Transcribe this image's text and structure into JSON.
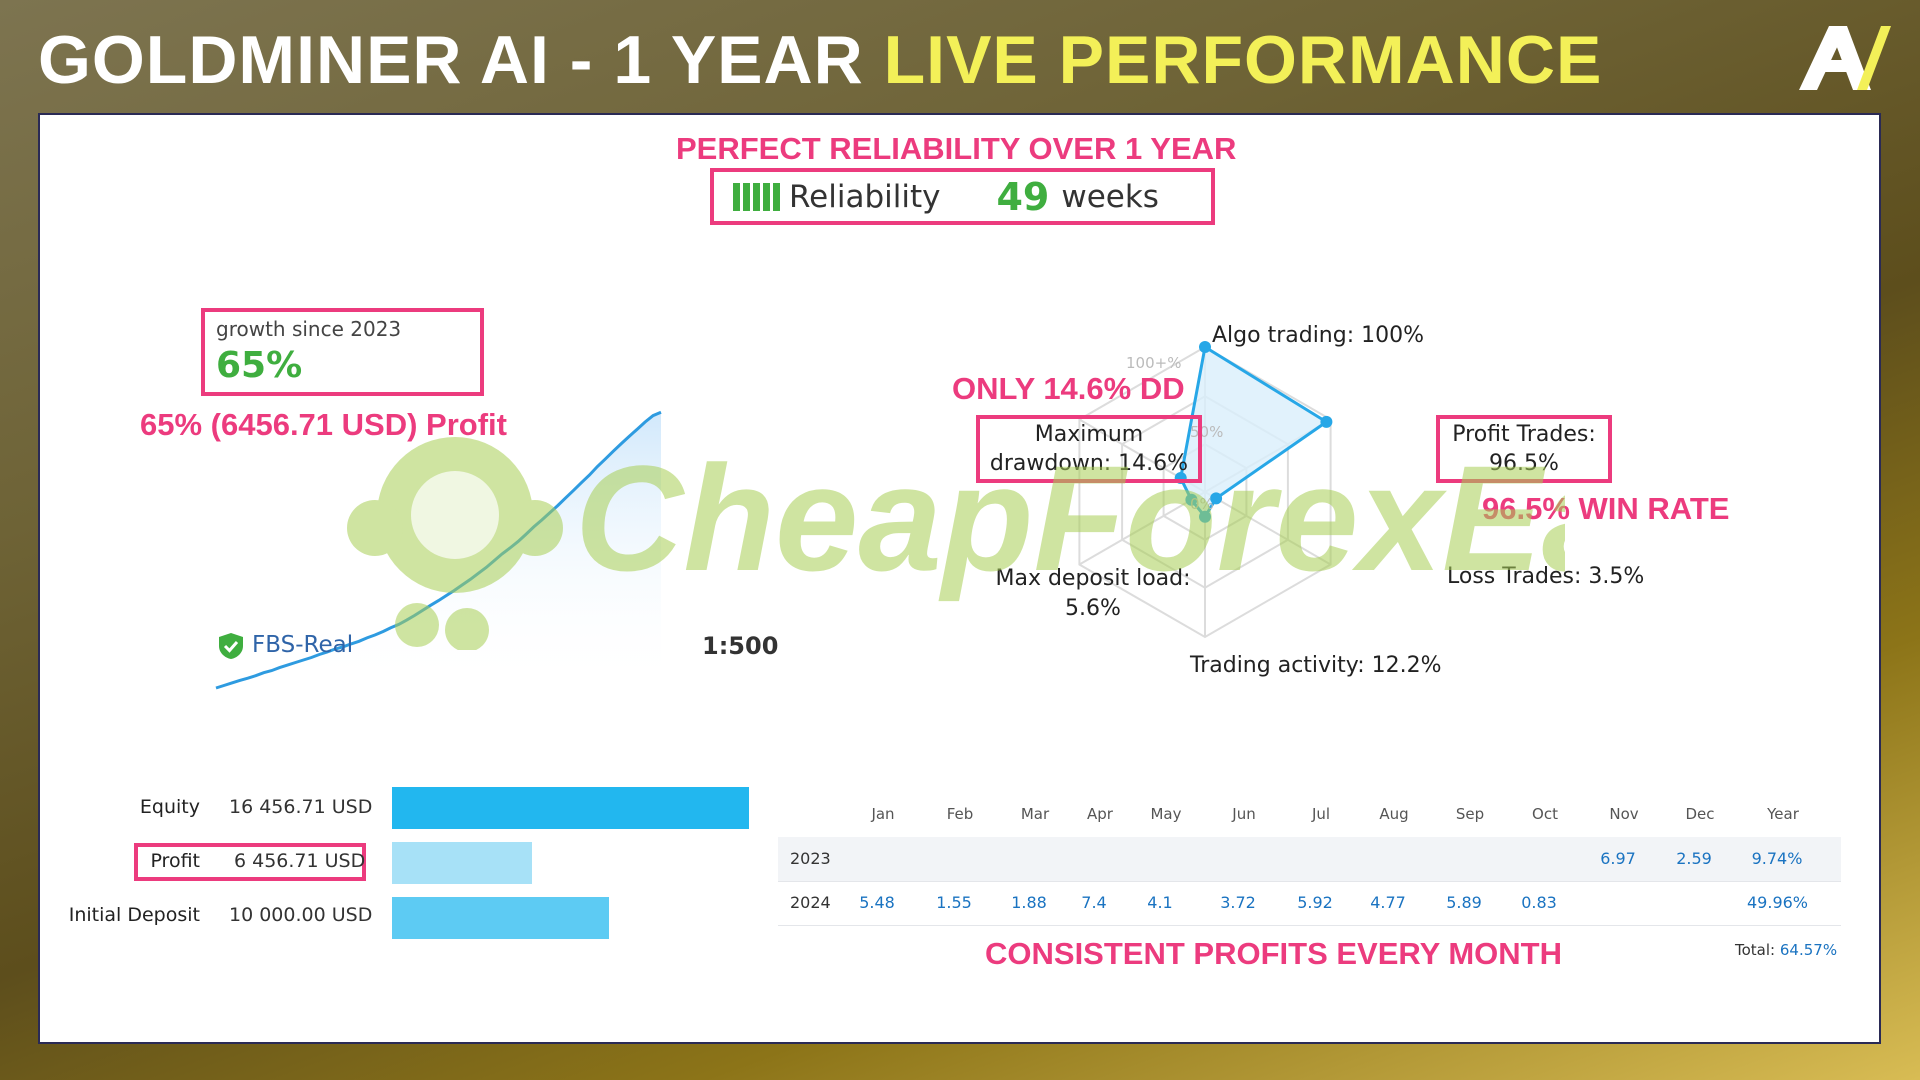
{
  "header": {
    "title_white": "GOLDMINER AI - 1 YEAR ",
    "title_yellow": "LIVE PERFORMANCE"
  },
  "annotations": {
    "reliability_caption": "PERFECT RELIABILITY OVER 1 YEAR",
    "profit_caption": "65% (6456.71 USD) Profit",
    "dd_caption": "ONLY 14.6% DD",
    "winrate_caption": "96.5% WIN RATE",
    "monthly_caption": "CONSISTENT PROFITS EVERY MONTH"
  },
  "reliability": {
    "label": "Reliability",
    "weeks_value": "49",
    "weeks_unit": "weeks",
    "bars": 5
  },
  "growth": {
    "label": "growth since 2023",
    "value": "65%"
  },
  "account": {
    "broker": "FBS-Real",
    "leverage": "1:500"
  },
  "watermark": "CheapForexEa",
  "radar": {
    "algo": "Algo trading: 100%",
    "profit_trades_1": "Profit Trades:",
    "profit_trades_2": "96.5%",
    "loss_trades": "Loss Trades: 3.5%",
    "trading_activity": "Trading activity: 12.2%",
    "max_deposit_1": "Max deposit load:",
    "max_deposit_2": "5.6%",
    "max_dd_1": "Maximum",
    "max_dd_2": "drawdown: 14.6%",
    "scale_100": "100+%",
    "scale_50": "50%",
    "scale_0": "0%",
    "values": [
      100,
      96.5,
      3.5,
      12.2,
      5.6,
      14.6
    ]
  },
  "stats": {
    "equity_label": "Equity",
    "equity_value": "16 456.71 USD",
    "profit_label": "Profit",
    "profit_value": "6 456.71 USD",
    "deposit_label": "Initial Deposit",
    "deposit_value": "10 000.00 USD",
    "equity_amount": 16456.71,
    "profit_amount": 6456.71,
    "deposit_amount": 10000.0,
    "colors": {
      "equity": "#22b7ef",
      "profit": "#a7e1f7",
      "deposit": "#5dcbf3"
    }
  },
  "monthly": {
    "headers": [
      "Jan",
      "Feb",
      "Mar",
      "Apr",
      "May",
      "Jun",
      "Jul",
      "Aug",
      "Sep",
      "Oct",
      "Nov",
      "Dec",
      "Year"
    ],
    "rows": [
      {
        "year": "2023",
        "cells": [
          "",
          "",
          "",
          "",
          "",
          "",
          "",
          "",
          "",
          "",
          "6.97",
          "2.59",
          "9.74%"
        ]
      },
      {
        "year": "2024",
        "cells": [
          "5.48",
          "1.55",
          "1.88",
          "7.4",
          "4.1",
          "3.72",
          "5.92",
          "4.77",
          "5.89",
          "0.83",
          "",
          "",
          "49.96%"
        ]
      }
    ],
    "total_label": "Total:",
    "total_value": "64.57%"
  },
  "chart_data": {
    "type": "line",
    "title": "",
    "xlabel": "",
    "ylabel": "",
    "series": [
      {
        "values": [
          0.0,
          0.6,
          1.2,
          1.8,
          2.3,
          2.9,
          3.6,
          4.1,
          4.8,
          5.4,
          6.0,
          6.6,
          7.2,
          7.9,
          8.5,
          9.2,
          9.7,
          10.4,
          11.0,
          11.8,
          12.5,
          13.3,
          14.2,
          15.0,
          16.0,
          17.1,
          18.3,
          19.5,
          20.6,
          21.8,
          23.0,
          24.3,
          25.6,
          27.0,
          28.4,
          30.0,
          31.6,
          33.0,
          34.5,
          36.2,
          38.0,
          39.6,
          41.3,
          43.0,
          44.8,
          46.6,
          48.4,
          50.2,
          52.2,
          54.0,
          55.8,
          57.6,
          59.3,
          61.0,
          62.7,
          64.2,
          65.0
        ]
      }
    ]
  }
}
